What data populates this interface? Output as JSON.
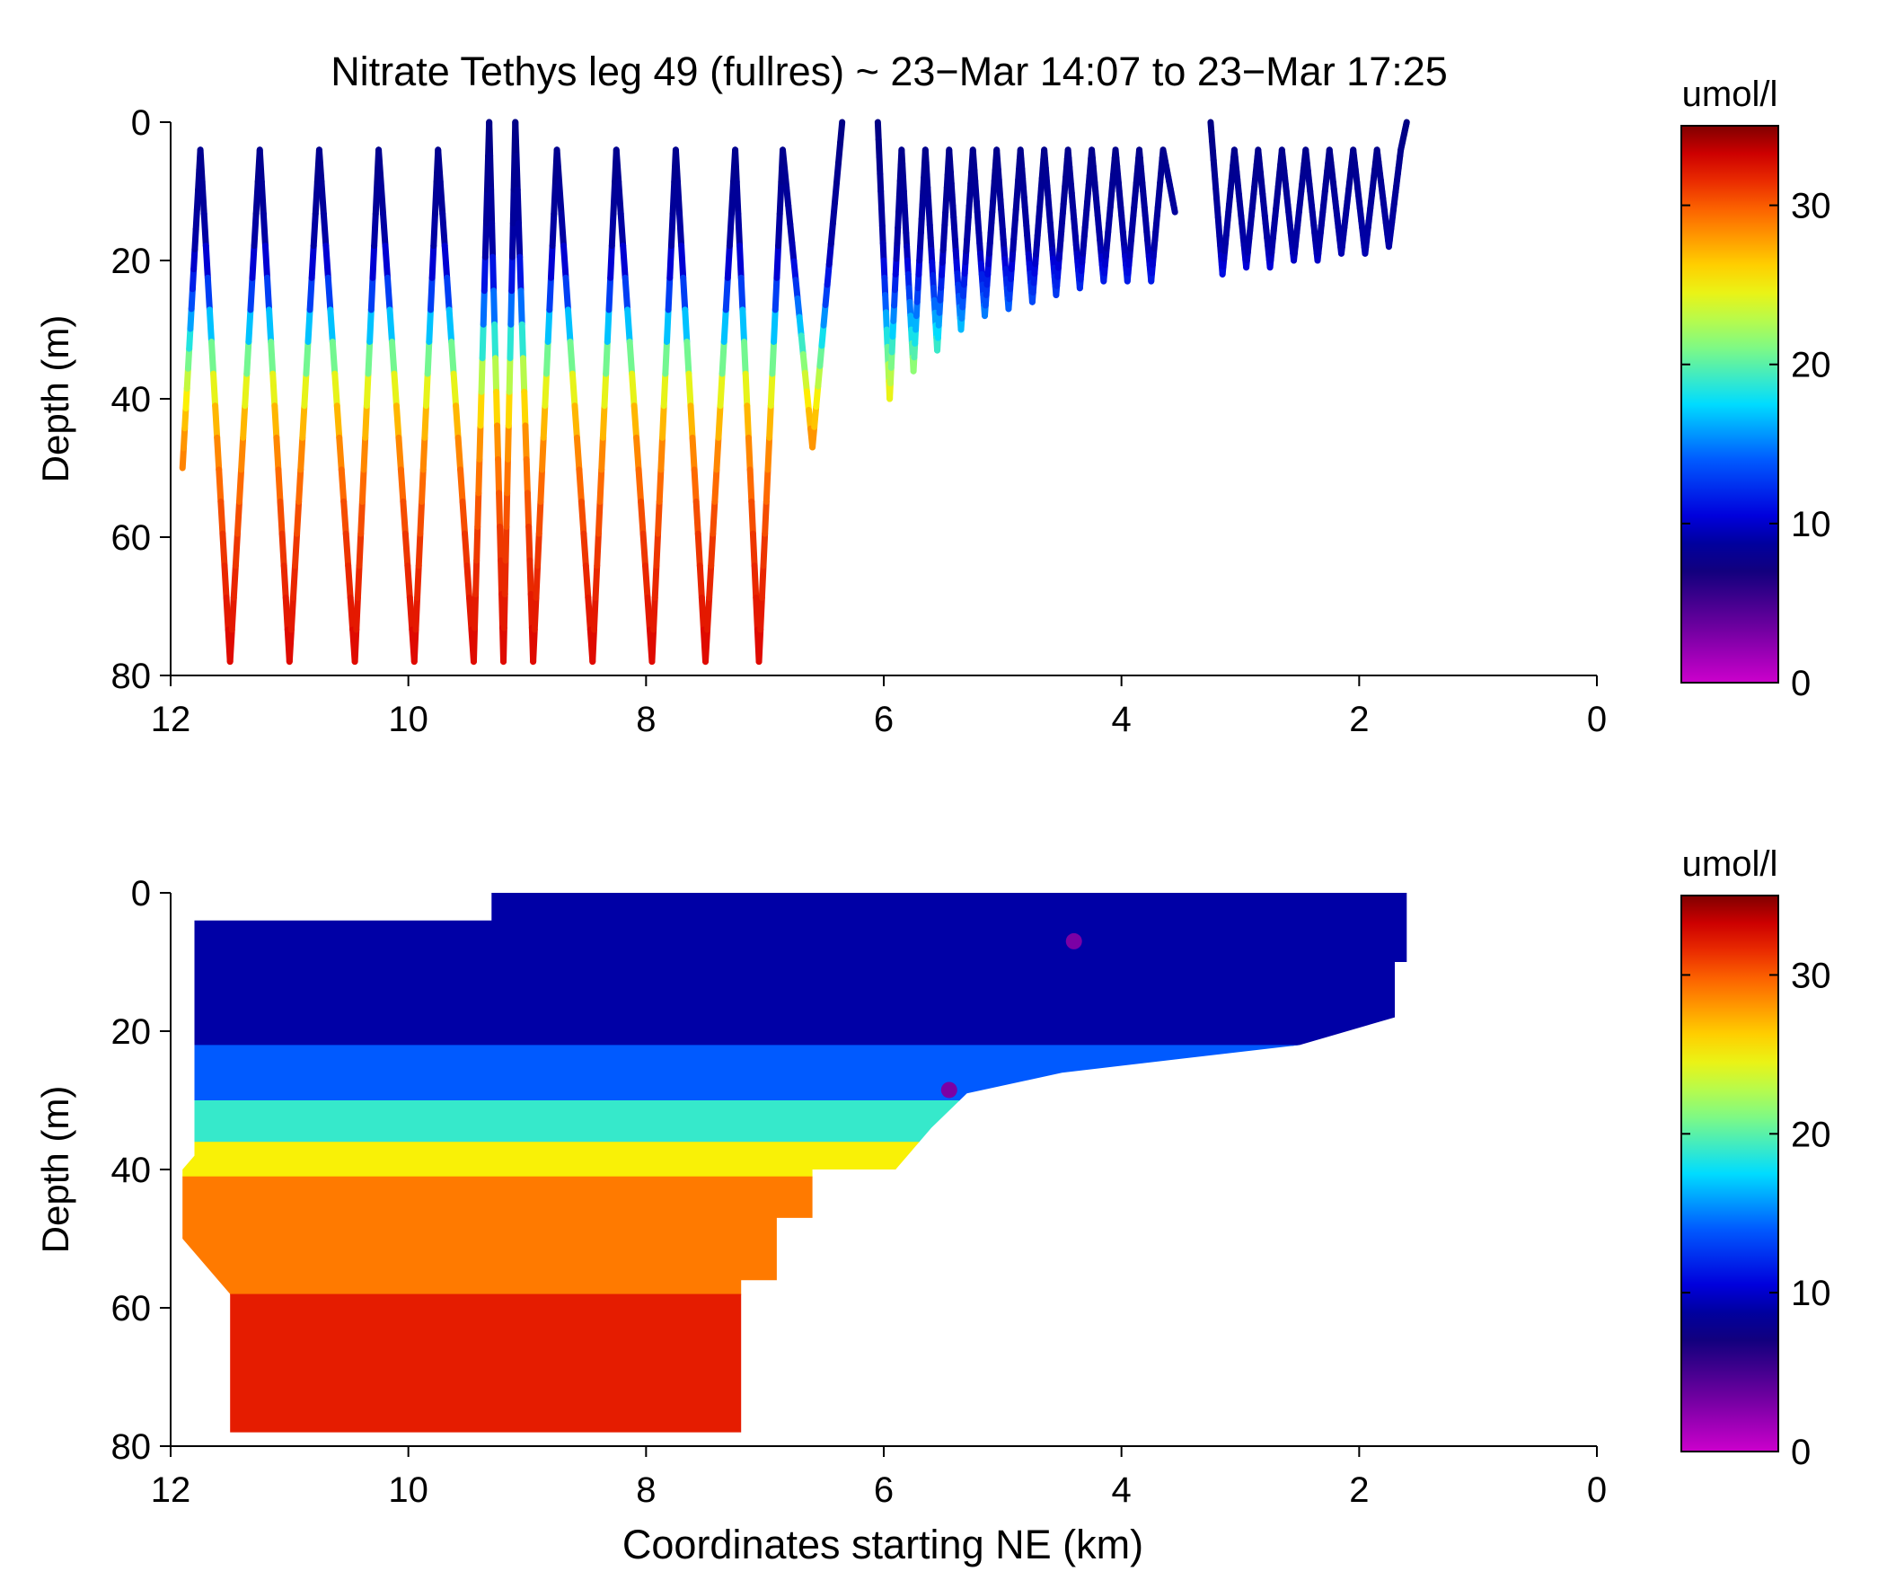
{
  "figure": {
    "title": "Nitrate Tethys leg 49 (fullres) ~ 23−Mar 14:07 to 23−Mar 17:25",
    "xlabel": "Coordinates starting NE (km)"
  },
  "chart_data": [
    {
      "type": "scatter",
      "panel": "top",
      "title": "Nitrate Tethys leg 49 (fullres) ~ 23−Mar 14:07 to 23−Mar 17:25",
      "xlabel": "",
      "ylabel": "Depth (m)",
      "xlim": [
        12,
        0
      ],
      "ylim": [
        0,
        80
      ],
      "y_reversed": true,
      "xticks": [
        12,
        10,
        8,
        6,
        4,
        2,
        0
      ],
      "yticks": [
        0,
        20,
        40,
        60,
        80
      ],
      "color_variable": "nitrate",
      "colorbar": {
        "label": "umol/l",
        "range": [
          0,
          35
        ],
        "ticks": [
          0,
          10,
          20,
          30
        ]
      },
      "profiles": [
        {
          "x": [
            11.9,
            11.75,
            11.5,
            11.25,
            11.0,
            10.75,
            10.45,
            10.25,
            9.95,
            9.75,
            9.45,
            9.32,
            9.2,
            9.1,
            8.95,
            8.75,
            8.45,
            8.25,
            7.95,
            7.75,
            7.5,
            7.25,
            7.05,
            6.85,
            6.6,
            6.35
          ],
          "depth": [
            50,
            4,
            78,
            4,
            78,
            4,
            78,
            4,
            78,
            4,
            78,
            0,
            78,
            0,
            78,
            4,
            78,
            4,
            78,
            4,
            78,
            4,
            78,
            4,
            47,
            0
          ]
        },
        {
          "x": [
            6.05,
            5.95,
            5.85,
            5.75,
            5.65,
            5.55,
            5.45,
            5.35,
            5.25,
            5.15,
            5.05,
            4.95,
            4.85,
            4.75,
            4.65,
            4.55,
            4.45,
            4.35,
            4.25,
            4.15,
            4.05,
            3.95,
            3.85,
            3.75,
            3.65,
            3.55
          ],
          "depth": [
            0,
            40,
            4,
            36,
            4,
            33,
            4,
            30,
            4,
            28,
            4,
            27,
            4,
            26,
            4,
            25,
            4,
            24,
            4,
            23,
            4,
            23,
            4,
            23,
            4,
            13
          ]
        },
        {
          "x": [
            3.25,
            3.15,
            3.05,
            2.95,
            2.85,
            2.75,
            2.65,
            2.55,
            2.45,
            2.35,
            2.25,
            2.15,
            2.05,
            1.95,
            1.85,
            1.75,
            1.65,
            1.6
          ],
          "depth": [
            0,
            22,
            4,
            21,
            4,
            21,
            4,
            20,
            4,
            20,
            4,
            19,
            4,
            19,
            4,
            18,
            4,
            0
          ]
        }
      ],
      "nitrate_vs_depth": [
        {
          "depth": 0,
          "nitrate": 8
        },
        {
          "depth": 18,
          "nitrate": 9
        },
        {
          "depth": 25,
          "nitrate": 13
        },
        {
          "depth": 32,
          "nitrate": 19
        },
        {
          "depth": 38,
          "nitrate": 24
        },
        {
          "depth": 45,
          "nitrate": 28
        },
        {
          "depth": 60,
          "nitrate": 31
        },
        {
          "depth": 80,
          "nitrate": 33
        }
      ]
    },
    {
      "type": "heatmap",
      "panel": "bottom",
      "title": "",
      "xlabel": "Coordinates starting NE (km)",
      "ylabel": "Depth (m)",
      "xlim": [
        12,
        0
      ],
      "ylim": [
        0,
        80
      ],
      "y_reversed": true,
      "xticks": [
        12,
        10,
        8,
        6,
        4,
        2,
        0
      ],
      "yticks": [
        0,
        20,
        40,
        60,
        80
      ],
      "colorbar": {
        "label": "umol/l",
        "range": [
          0,
          35
        ],
        "ticks": [
          0,
          10,
          20,
          30
        ]
      },
      "data_extent": [
        [
          11.8,
          4
        ],
        [
          9.3,
          4
        ],
        [
          9.3,
          0
        ],
        [
          1.6,
          0
        ],
        [
          1.6,
          10
        ],
        [
          1.7,
          10
        ],
        [
          1.7,
          18
        ],
        [
          2.5,
          22
        ],
        [
          3.5,
          24
        ],
        [
          4.5,
          26
        ],
        [
          5.3,
          29
        ],
        [
          5.6,
          34
        ],
        [
          5.9,
          40
        ],
        [
          6.6,
          40
        ],
        [
          6.6,
          47
        ],
        [
          6.9,
          47
        ],
        [
          6.9,
          56
        ],
        [
          7.2,
          56
        ],
        [
          7.2,
          78
        ],
        [
          11.5,
          78
        ],
        [
          11.5,
          58
        ],
        [
          11.9,
          50
        ],
        [
          11.9,
          40
        ],
        [
          11.8,
          38
        ]
      ],
      "layers": [
        {
          "depth_from": 0,
          "depth_to": 22,
          "nitrate": 9
        },
        {
          "depth_from": 22,
          "depth_to": 30,
          "nitrate": 14
        },
        {
          "depth_from": 30,
          "depth_to": 36,
          "nitrate": 19
        },
        {
          "depth_from": 36,
          "depth_to": 41,
          "nitrate": 25
        },
        {
          "depth_from": 41,
          "depth_to": 58,
          "nitrate": 29
        },
        {
          "depth_from": 58,
          "depth_to": 80,
          "nitrate": 32
        }
      ],
      "anomalies": [
        {
          "x": 4.4,
          "depth": 7,
          "nitrate": 3
        },
        {
          "x": 5.45,
          "depth": 28.5,
          "nitrate": 3
        }
      ]
    }
  ]
}
